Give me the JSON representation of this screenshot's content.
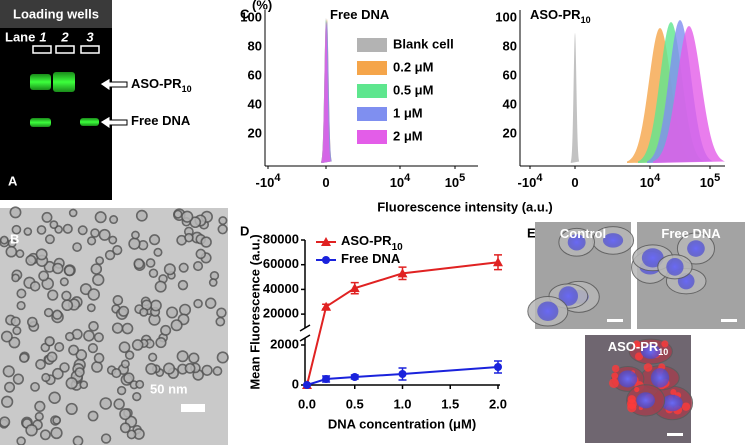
{
  "panel_a": {
    "label": "A",
    "header": "Loading wells",
    "lane_label": "Lane",
    "lanes": [
      "1",
      "2",
      "3"
    ],
    "bands": [
      {
        "text": "ASO-PR",
        "sub": "10"
      },
      {
        "text": "Free DNA"
      }
    ]
  },
  "panel_b": {
    "label": "B",
    "scale_bar": "50 nm"
  },
  "panel_c": {
    "label": "C",
    "y_unit": "(%)",
    "x_label": "Fluorescence intensity (a.u.)",
    "yticks": [
      100,
      80,
      60,
      40,
      20
    ],
    "xticks": [
      {
        "base": "-10",
        "exp": "4"
      },
      {
        "base": "0"
      },
      {
        "base": "10",
        "exp": "4"
      },
      {
        "base": "10",
        "exp": "5"
      }
    ],
    "plots": [
      {
        "text": "Free DNA"
      },
      {
        "text": "ASO-PR",
        "sub": "10"
      }
    ],
    "legend": [
      {
        "name": "Blank cell",
        "color": "#b3b3b3"
      },
      {
        "name": "0.2 μM",
        "color": "#f5a54a"
      },
      {
        "name": "0.5 μM",
        "color": "#5ee68e"
      },
      {
        "name": "1 μM",
        "color": "#7f8ff0"
      },
      {
        "name": "2 μM",
        "color": "#e35de8"
      }
    ]
  },
  "chart_data": {
    "type": "line",
    "panel_label": "D",
    "x_label": "DNA concentration (μM)",
    "y_label": "Mean Fluorescence (a.u.)",
    "x": [
      0,
      0.2,
      0.5,
      1.0,
      2.0
    ],
    "series": [
      {
        "name": "ASO-PR",
        "name_sub": "10",
        "color": "#e02222",
        "marker": "triangle",
        "values": [
          0,
          26000,
          41000,
          53000,
          62000
        ],
        "errors": [
          0,
          2000,
          4500,
          5000,
          6000
        ]
      },
      {
        "name": "Free DNA",
        "color": "#1a22dc",
        "marker": "circle",
        "values": [
          0,
          300,
          400,
          550,
          900
        ],
        "errors": [
          0,
          150,
          100,
          300,
          300
        ]
      }
    ],
    "xlim": [
      0,
      2.0
    ],
    "xticks": [
      {
        "value": 0,
        "label": "0.0"
      },
      {
        "value": 0.5,
        "label": "0.5"
      },
      {
        "value": 1.0,
        "label": "1.0"
      },
      {
        "value": 1.5,
        "label": "1.5"
      },
      {
        "value": 2.0,
        "label": "2.0"
      }
    ],
    "ylim": [
      0,
      80000
    ],
    "y_break": [
      2000,
      12000
    ],
    "yticks": [
      0,
      2000,
      20000,
      40000,
      60000,
      80000
    ],
    "legend": "upper left"
  },
  "panel_e": {
    "label": "E",
    "images": [
      {
        "text": "Control"
      },
      {
        "text": "Free DNA"
      },
      {
        "text": "ASO-PR",
        "sub": "10"
      }
    ]
  }
}
